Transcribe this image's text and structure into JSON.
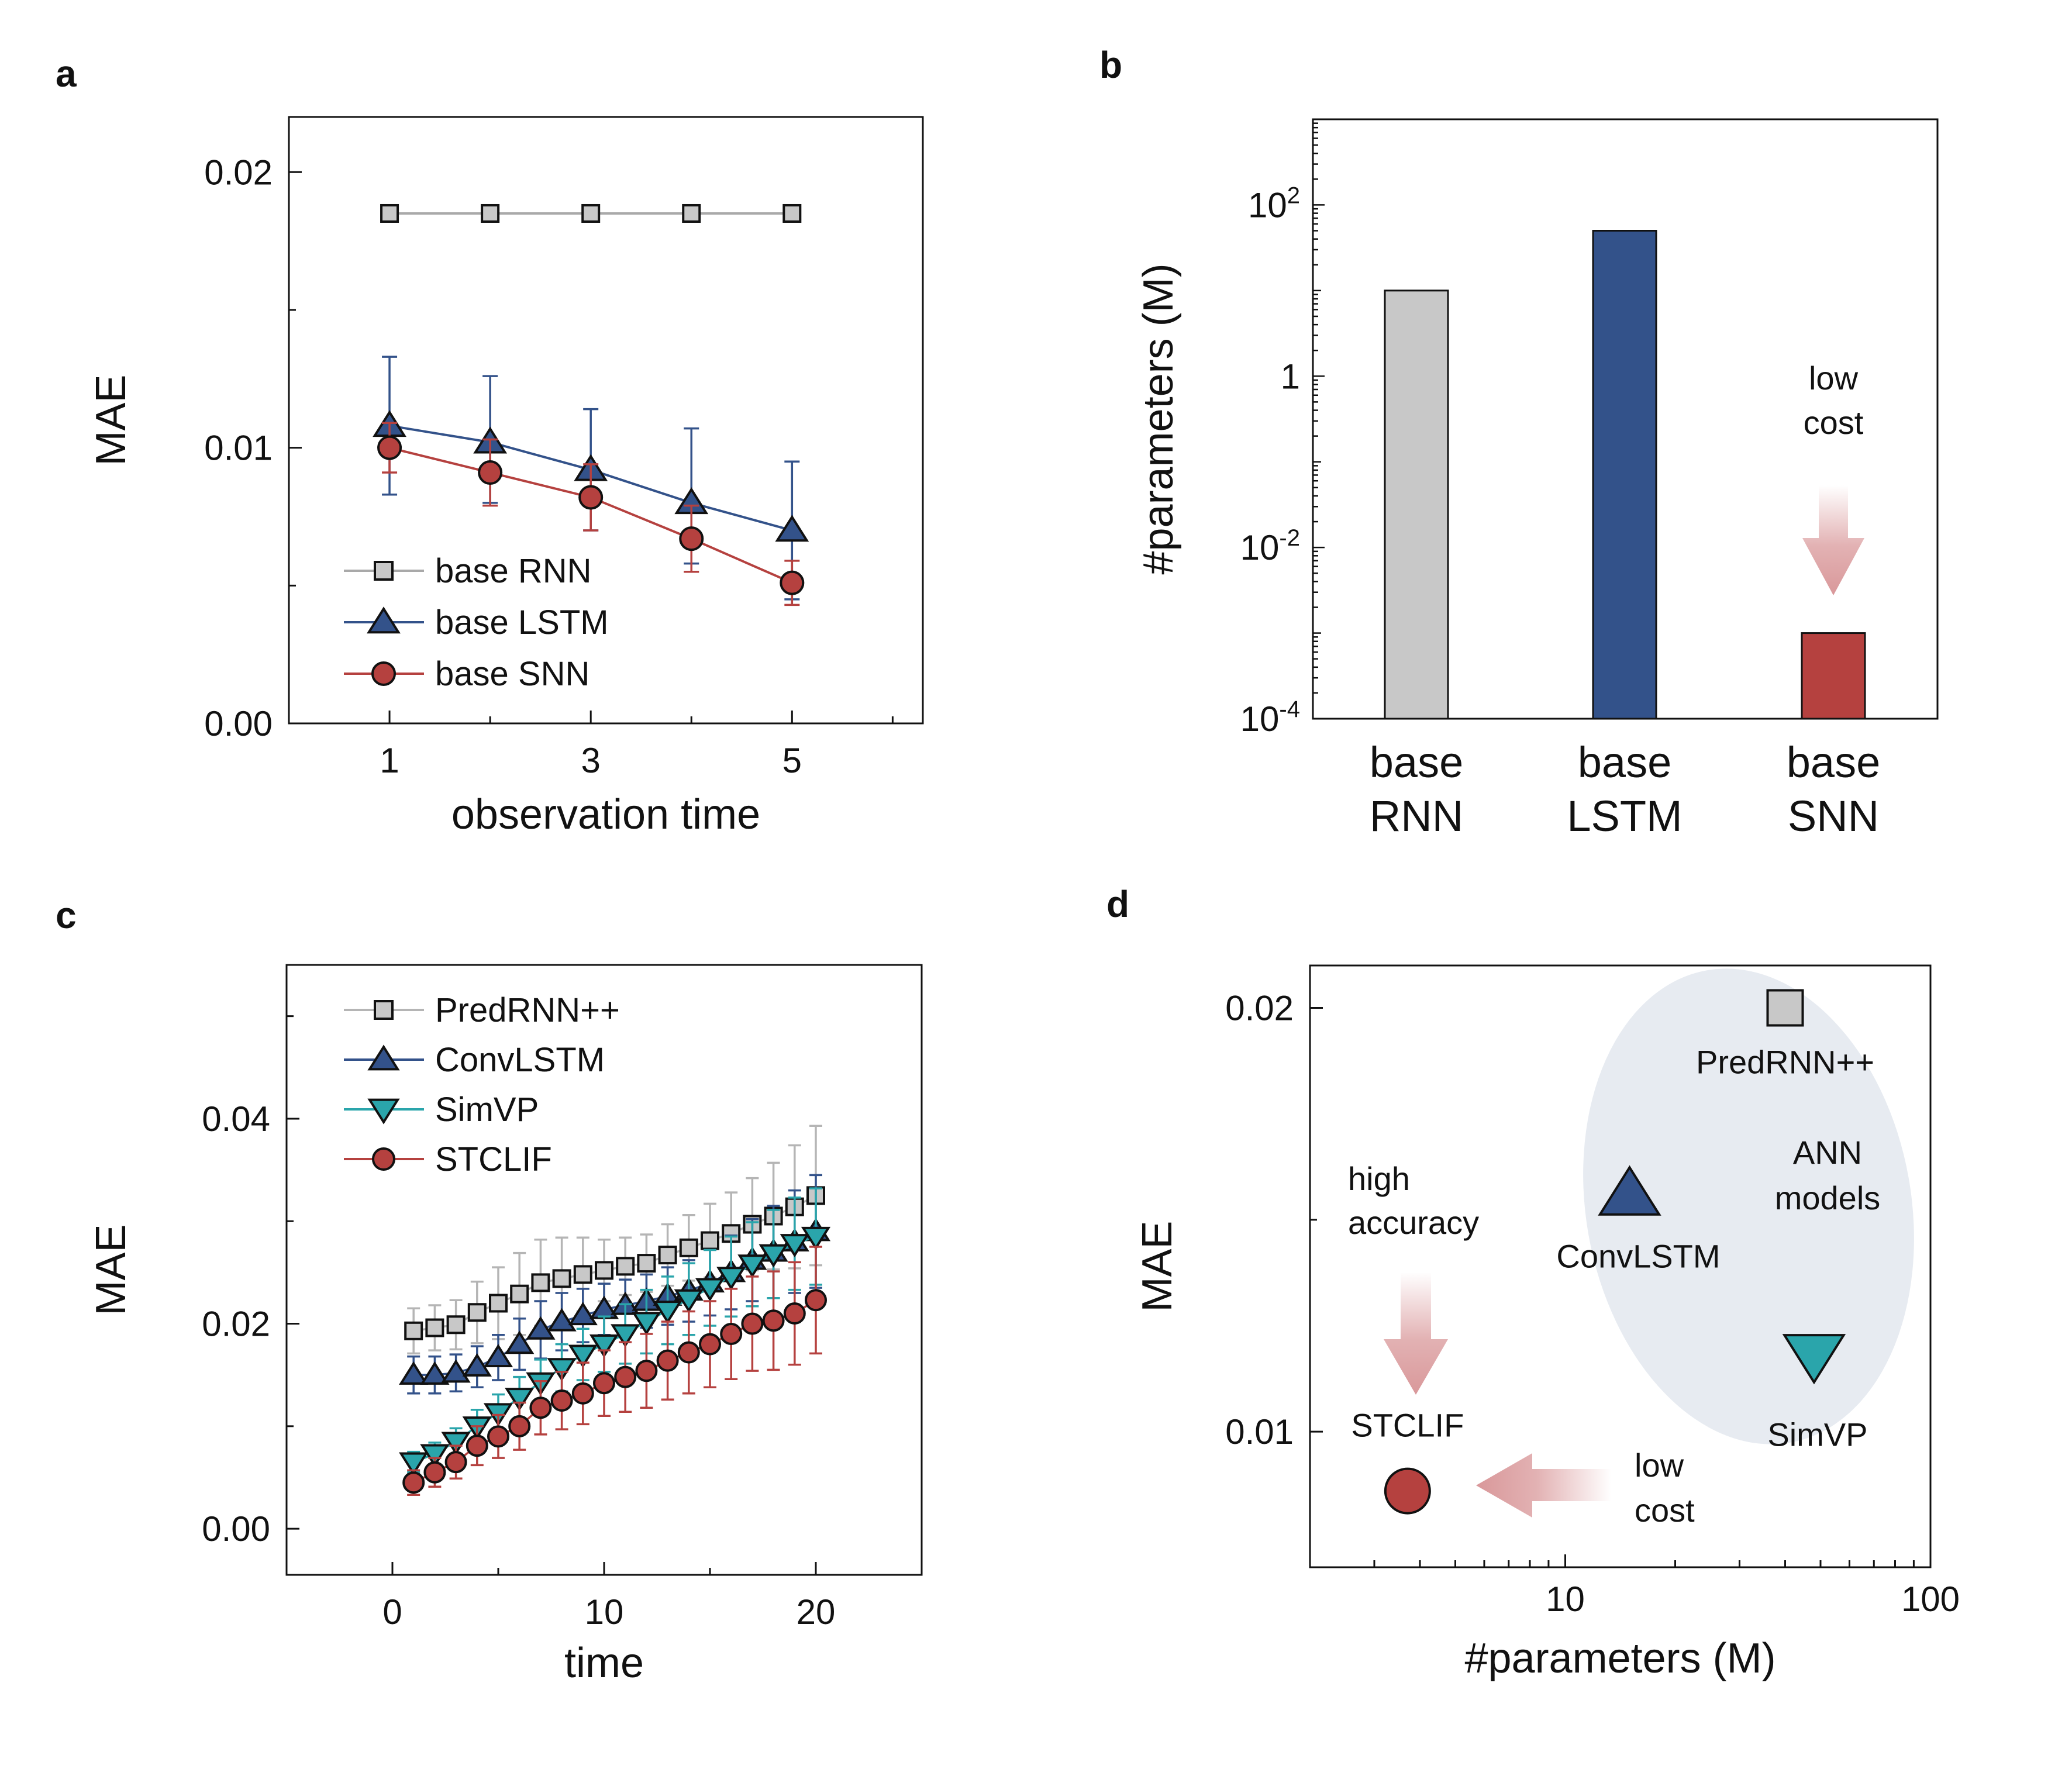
{
  "colors": {
    "rnn": "#c8c8c8",
    "lstm": "#33528a",
    "snn": "#b5413f",
    "simvp": "#2aa5ab",
    "ellipse": "#e7ebf1",
    "arrow": "#d9989a",
    "line": "#111111"
  },
  "chart_data": [
    {
      "panel": "a",
      "type": "line",
      "xlabel": "observation time",
      "ylabel": "MAE",
      "xlim": [
        0,
        6.3
      ],
      "ylim": [
        0,
        0.022
      ],
      "xticks": [
        1,
        3,
        5
      ],
      "xtick_labels": [
        "1",
        "3",
        "5"
      ],
      "yticks": [
        0,
        0.01,
        0.02
      ],
      "ytick_labels": [
        "0.00",
        "0.01",
        "0.02"
      ],
      "x": [
        1,
        2,
        3,
        4,
        5
      ],
      "series": [
        {
          "name": "base RNN",
          "marker": "square",
          "color_key": "rnn",
          "values": [
            0.0185,
            0.0185,
            0.0185,
            0.0185,
            0.0185
          ],
          "err_up": [
            0,
            0,
            0,
            0,
            0
          ],
          "err_down": [
            0,
            0,
            0,
            0,
            0
          ]
        },
        {
          "name": "base LSTM",
          "marker": "triangle-up",
          "color_key": "lstm",
          "values": [
            0.0108,
            0.0102,
            0.0092,
            0.008,
            0.007
          ],
          "err_up": [
            0.0025,
            0.0024,
            0.0022,
            0.0027,
            0.0025
          ],
          "err_down": [
            0.0025,
            0.0022,
            0.0022,
            0.0022,
            0.0025
          ]
        },
        {
          "name": "base SNN",
          "marker": "circle",
          "color_key": "snn",
          "values": [
            0.01,
            0.0091,
            0.0082,
            0.0067,
            0.0051
          ],
          "err_up": [
            0.0009,
            0.0012,
            0.0012,
            0.0012,
            0.0008
          ],
          "err_down": [
            0.0009,
            0.0012,
            0.0012,
            0.0012,
            0.0008
          ]
        }
      ]
    },
    {
      "panel": "b",
      "type": "bar",
      "yscale": "log",
      "ylabel": "#parameters (M)",
      "ylim": [
        0.0001,
        1000
      ],
      "ytick_labels": [
        {
          "value": 0.0001,
          "base": "10",
          "exp": "-4"
        },
        {
          "value": 0.01,
          "base": "10",
          "exp": "-2"
        },
        {
          "value": 1,
          "base": "1",
          "exp": ""
        },
        {
          "value": 100,
          "base": "10",
          "exp": "2"
        }
      ],
      "categories": [
        {
          "line1": "base",
          "line2": "RNN"
        },
        {
          "line1": "base",
          "line2": "LSTM"
        },
        {
          "line1": "base",
          "line2": "SNN"
        }
      ],
      "values": [
        10,
        50,
        0.001
      ],
      "color_keys": [
        "rnn",
        "lstm",
        "snn"
      ],
      "annotation": {
        "line1": "low",
        "line2": "cost"
      }
    },
    {
      "panel": "c",
      "type": "line",
      "xlabel": "time",
      "ylabel": "MAE",
      "xlim": [
        -5,
        25
      ],
      "ylim": [
        -0.0045,
        0.055
      ],
      "xticks": [
        0,
        10,
        20
      ],
      "xtick_labels": [
        "0",
        "10",
        "20"
      ],
      "yticks": [
        0,
        0.02,
        0.04
      ],
      "ytick_labels": [
        "0.00",
        "0.02",
        "0.04"
      ],
      "x": [
        1,
        2,
        3,
        4,
        5,
        6,
        7,
        8,
        9,
        10,
        11,
        12,
        13,
        14,
        15,
        16,
        17,
        18,
        19,
        20
      ],
      "series": [
        {
          "name": "PredRNN++",
          "marker": "square",
          "color_key": "rnn",
          "values": [
            0.0193,
            0.0196,
            0.0199,
            0.0211,
            0.022,
            0.0229,
            0.024,
            0.0244,
            0.0248,
            0.0252,
            0.0256,
            0.0259,
            0.0267,
            0.0274,
            0.0281,
            0.0288,
            0.0297,
            0.0305,
            0.0314,
            0.0325
          ],
          "err": [
            0.0022,
            0.0022,
            0.0024,
            0.003,
            0.0035,
            0.004,
            0.0042,
            0.004,
            0.0036,
            0.003,
            0.0028,
            0.0028,
            0.003,
            0.0032,
            0.0036,
            0.004,
            0.0045,
            0.0052,
            0.006,
            0.0068
          ]
        },
        {
          "name": "ConvLSTM",
          "marker": "triangle-up",
          "color_key": "lstm",
          "values": [
            0.015,
            0.015,
            0.0152,
            0.0158,
            0.0167,
            0.018,
            0.0194,
            0.0202,
            0.0208,
            0.0214,
            0.0218,
            0.0222,
            0.0227,
            0.0232,
            0.024,
            0.025,
            0.0262,
            0.027,
            0.028,
            0.029
          ],
          "err": [
            0.0018,
            0.0018,
            0.0018,
            0.002,
            0.0022,
            0.0025,
            0.0028,
            0.0028,
            0.0026,
            0.0025,
            0.0025,
            0.0026,
            0.0028,
            0.003,
            0.0032,
            0.0036,
            0.004,
            0.0045,
            0.005,
            0.0055
          ]
        },
        {
          "name": "SimVP",
          "marker": "triangle-down",
          "color_key": "simvp",
          "values": [
            0.0065,
            0.0073,
            0.0085,
            0.01,
            0.0113,
            0.0128,
            0.0143,
            0.0157,
            0.017,
            0.018,
            0.019,
            0.0202,
            0.0213,
            0.0224,
            0.0235,
            0.0246,
            0.0258,
            0.0268,
            0.0278,
            0.0285
          ],
          "err": [
            0.001,
            0.0011,
            0.0013,
            0.0016,
            0.0018,
            0.002,
            0.0022,
            0.0023,
            0.0025,
            0.0027,
            0.0029,
            0.0031,
            0.0033,
            0.0035,
            0.0037,
            0.0039,
            0.0041,
            0.0043,
            0.0045,
            0.0047
          ]
        },
        {
          "name": "STCLIF",
          "marker": "circle",
          "color_key": "snn",
          "values": [
            0.0045,
            0.0055,
            0.0065,
            0.0081,
            0.009,
            0.01,
            0.0118,
            0.0125,
            0.0132,
            0.0142,
            0.0148,
            0.0154,
            0.0164,
            0.0172,
            0.018,
            0.019,
            0.02,
            0.0203,
            0.021,
            0.0223
          ],
          "err": [
            0.0012,
            0.0014,
            0.0016,
            0.0019,
            0.0021,
            0.0023,
            0.0026,
            0.0028,
            0.003,
            0.0032,
            0.0034,
            0.0036,
            0.0038,
            0.004,
            0.0042,
            0.0044,
            0.0046,
            0.0048,
            0.005,
            0.0052
          ]
        }
      ]
    },
    {
      "panel": "d",
      "type": "scatter",
      "xscale": "log",
      "xlabel": "#parameters (M)",
      "ylabel": "MAE",
      "xlim": [
        2,
        100
      ],
      "ylim": [
        0.0068,
        0.021
      ],
      "xticks": [
        10,
        100
      ],
      "xtick_labels": [
        "10",
        "100"
      ],
      "yticks": [
        0.01,
        0.02
      ],
      "ytick_labels": [
        "0.01",
        "0.02"
      ],
      "points": [
        {
          "name": "PredRNN++",
          "x": 40,
          "y": 0.02,
          "marker": "square",
          "color_key": "rnn"
        },
        {
          "name": "ConvLSTM",
          "x": 15,
          "y": 0.0156,
          "marker": "triangle-up",
          "color_key": "lstm"
        },
        {
          "name": "SimVP",
          "x": 48,
          "y": 0.0118,
          "marker": "triangle-down",
          "color_key": "simvp"
        },
        {
          "name": "STCLIF",
          "x": 3.7,
          "y": 0.0086,
          "marker": "circle",
          "color_key": "snn"
        }
      ],
      "region_label": {
        "line1": "ANN",
        "line2": "models"
      },
      "annotations": {
        "accuracy": {
          "line1": "high",
          "line2": "accuracy"
        },
        "cost": {
          "line1": "low",
          "line2": "cost"
        }
      }
    }
  ]
}
